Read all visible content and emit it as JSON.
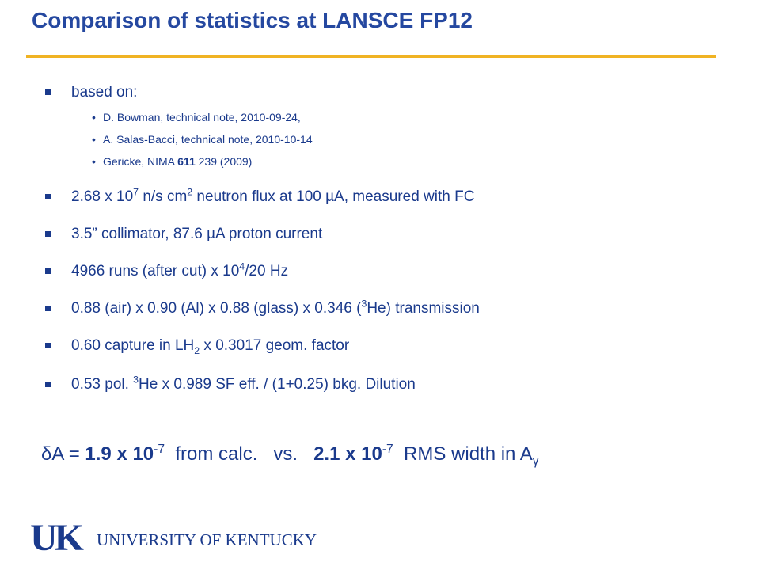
{
  "title": "Comparison of statistics at LANSCE FP12",
  "intro": "based on:",
  "references": [
    [
      "D. Bowman, technical note, 2010-09-24,"
    ],
    [
      "A. Salas-Bacci, technical note, 2010-10-14"
    ],
    [
      "Gericke, NIMA ",
      "611",
      " 239 (2009)"
    ]
  ],
  "bullets": [
    [
      "2.68 x 10",
      "7",
      " n/s cm",
      "2",
      " neutron flux at 100 µA, measured with FC"
    ],
    [
      "3.5” collimator, 87.6 µA proton current"
    ],
    [
      "4966 runs (after cut) x 10",
      "4",
      "/20 Hz"
    ],
    [
      "0.88 (air) x 0.90 (Al) x 0.88 (glass) x 0.346 (",
      "3",
      "He) transmission"
    ],
    [
      "0.60 capture in LH",
      "2",
      " x 0.3017 geom. factor"
    ],
    [
      "0.53 pol. ",
      "3",
      "He x 0.989 SF eff. / (1+0.25) bkg. Dilution"
    ]
  ],
  "result": [
    "δA = ",
    "1.9 x 10",
    "-7",
    "  from calc.   vs.   ",
    "2.1 x 10",
    "-7",
    "  RMS width in A",
    "γ"
  ],
  "logo": {
    "mark": "UK",
    "text": "UNIVERSITY OF KENTUCKY"
  }
}
